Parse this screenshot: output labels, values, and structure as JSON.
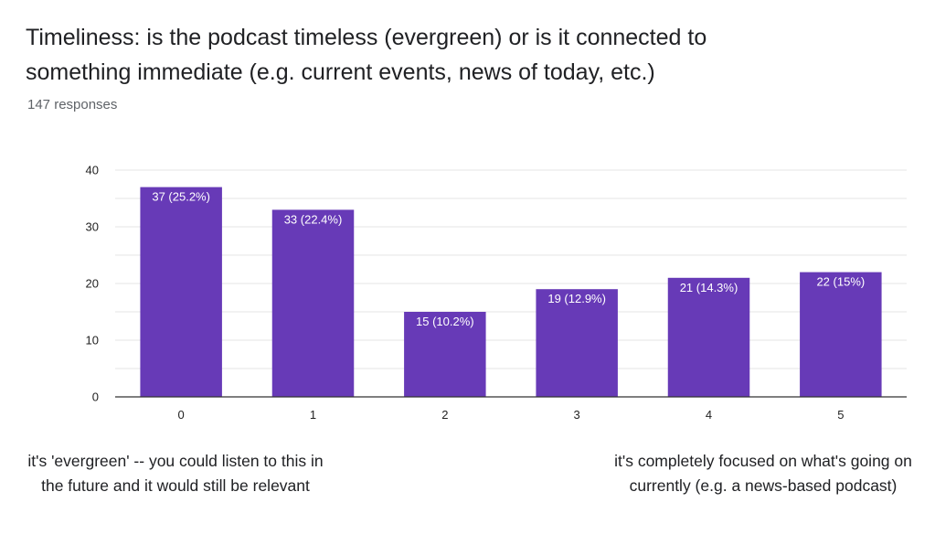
{
  "question": {
    "title_line1": "Timeliness: is the podcast timeless (evergreen) or is it connected to",
    "title_line2": "something immediate (e.g. current events, news of today, etc.)",
    "responses": "147 responses"
  },
  "scale_notes": {
    "low": "it's 'evergreen' -- you could listen to this in the future and it would still be relevant",
    "high": "it's completely focused on what's going on currently (e.g. a news-based podcast)"
  },
  "colors": {
    "bar": "#673ab7",
    "grid": "#e6e6e6",
    "axis": "#333333"
  },
  "chart_data": {
    "type": "bar",
    "title": "Timeliness: is the podcast timeless (evergreen) or is it connected to something immediate (e.g. current events, news of today, etc.)",
    "categories": [
      "0",
      "1",
      "2",
      "3",
      "4",
      "5"
    ],
    "values": [
      37,
      33,
      15,
      19,
      21,
      22
    ],
    "data_labels": [
      "37 (25.2%)",
      "33 (22.4%)",
      "15 (10.2%)",
      "19 (12.9%)",
      "21 (14.3%)",
      "22 (15%)"
    ],
    "y_ticks": [
      0,
      10,
      20,
      30,
      40
    ],
    "ylim": [
      0,
      40
    ],
    "xlabel": "",
    "ylabel": "",
    "grid": true,
    "legend": "none"
  }
}
